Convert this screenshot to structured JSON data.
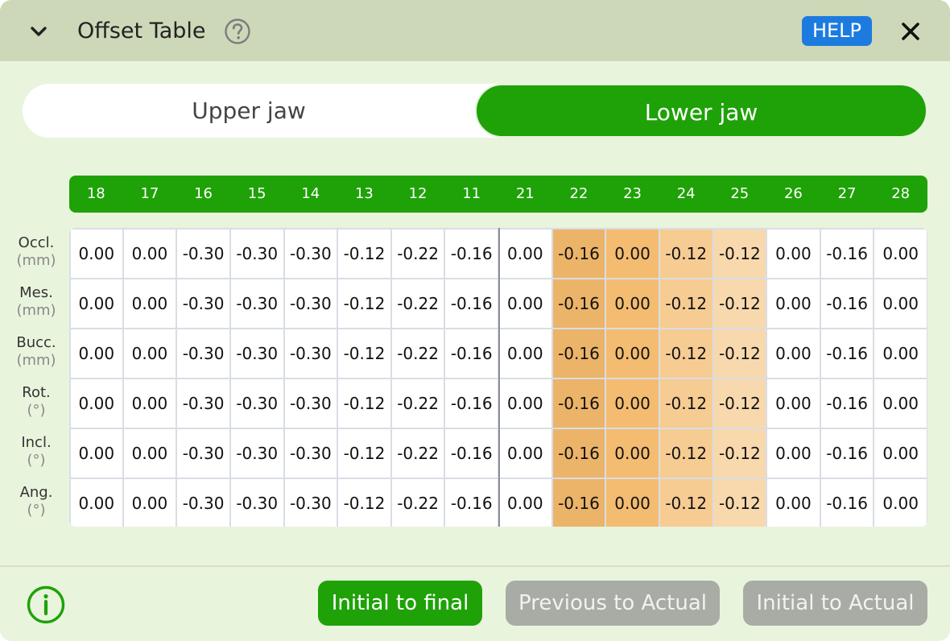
{
  "header": {
    "title": "Offset Table",
    "help_label": "HELP"
  },
  "tabs": [
    {
      "label": "Upper jaw",
      "selected": false
    },
    {
      "label": "Lower jaw",
      "selected": true
    }
  ],
  "table": {
    "columns": [
      "18",
      "17",
      "16",
      "15",
      "14",
      "13",
      "12",
      "11",
      "21",
      "22",
      "23",
      "24",
      "25",
      "26",
      "27",
      "28"
    ],
    "rows": [
      {
        "label": "Occl.",
        "unit": "(mm)",
        "values": [
          "0.00",
          "0.00",
          "-0.30",
          "-0.30",
          "-0.30",
          "-0.12",
          "-0.22",
          "-0.16",
          "0.00",
          "-0.16",
          "0.00",
          "-0.12",
          "-0.12",
          "0.00",
          "-0.16",
          "0.00"
        ],
        "flags": [
          4,
          14
        ]
      },
      {
        "label": "Mes.",
        "unit": "(mm)",
        "values": [
          "0.00",
          "0.00",
          "-0.30",
          "-0.30",
          "-0.30",
          "-0.12",
          "-0.22",
          "-0.16",
          "0.00",
          "-0.16",
          "0.00",
          "-0.12",
          "-0.12",
          "0.00",
          "-0.16",
          "0.00"
        ],
        "flags": [
          5,
          7,
          13
        ]
      },
      {
        "label": "Bucc.",
        "unit": "(mm)",
        "values": [
          "0.00",
          "0.00",
          "-0.30",
          "-0.30",
          "-0.30",
          "-0.12",
          "-0.22",
          "-0.16",
          "0.00",
          "-0.16",
          "0.00",
          "-0.12",
          "-0.12",
          "0.00",
          "-0.16",
          "0.00"
        ],
        "flags": [
          5,
          7,
          13
        ]
      },
      {
        "label": "Rot.",
        "unit": "(°)",
        "values": [
          "0.00",
          "0.00",
          "-0.30",
          "-0.30",
          "-0.30",
          "-0.12",
          "-0.22",
          "-0.16",
          "0.00",
          "-0.16",
          "0.00",
          "-0.12",
          "-0.12",
          "0.00",
          "-0.16",
          "0.00"
        ],
        "flags": [
          7,
          15
        ]
      },
      {
        "label": "Incl.",
        "unit": "(°)",
        "values": [
          "0.00",
          "0.00",
          "-0.30",
          "-0.30",
          "-0.30",
          "-0.12",
          "-0.22",
          "-0.16",
          "0.00",
          "-0.16",
          "0.00",
          "-0.12",
          "-0.12",
          "0.00",
          "-0.16",
          "0.00"
        ],
        "flags": [
          13
        ]
      },
      {
        "label": "Ang.",
        "unit": "(°)",
        "values": [
          "0.00",
          "0.00",
          "-0.30",
          "-0.30",
          "-0.30",
          "-0.12",
          "-0.22",
          "-0.16",
          "0.00",
          "-0.16",
          "0.00",
          "-0.12",
          "-0.12",
          "0.00",
          "-0.16",
          "0.00"
        ],
        "flags": []
      }
    ],
    "highlight_columns": {
      "22": "#ebb468",
      "23": "#f4bc70",
      "24": "#f6cc93",
      "25": "#f8d9ad"
    },
    "flag_color": "#e0393e"
  },
  "footer": {
    "buttons": [
      {
        "label": "Initial to final",
        "enabled": true
      },
      {
        "label": "Previous to Actual",
        "enabled": false
      },
      {
        "label": "Initial to Actual",
        "enabled": false
      }
    ]
  },
  "colors": {
    "accent": "#1ea207",
    "help": "#1d7be0",
    "titlebar": "#cdd8b8",
    "background": "#e9f4dd"
  },
  "icons": {
    "collapse": "chevron-down-icon",
    "question": "question-circle-icon",
    "close": "close-icon",
    "info": "info-circle-icon"
  }
}
